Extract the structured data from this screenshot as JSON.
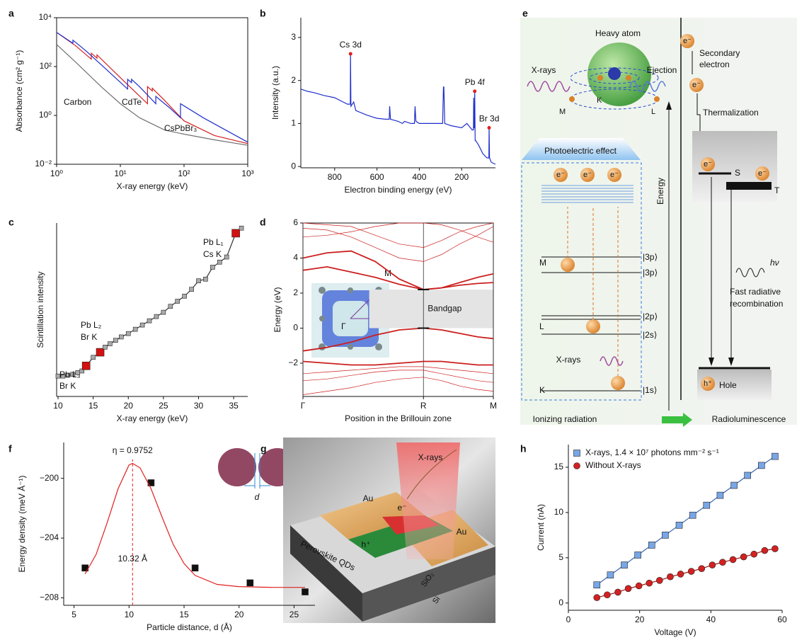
{
  "chart_data": [
    {
      "type": "line",
      "panel": "a",
      "xlabel": "X-ray energy (keV)",
      "ylabel": "Absorbance (cm² g⁻¹)",
      "xlog": true,
      "ylog": true,
      "frame": true,
      "xlim": [
        1,
        1000
      ],
      "ylim": [
        0.01,
        10000
      ],
      "xticks": [
        {
          "value": 1,
          "label": "10⁰"
        },
        {
          "value": 10,
          "label": "10¹"
        },
        {
          "value": 100,
          "label": "10²"
        },
        {
          "value": 1000,
          "label": "10³"
        }
      ],
      "yticks": [
        {
          "value": 0.01,
          "label": "10⁻²"
        },
        {
          "value": 1,
          "label": "10⁰"
        },
        {
          "value": 100,
          "label": "10²"
        },
        {
          "value": 10000,
          "label": "10⁴"
        }
      ],
      "series": [
        {
          "name": "Carbon",
          "color": "#707070",
          "x": [
            1,
            2,
            5,
            10,
            20,
            50,
            100,
            300,
            1000
          ],
          "values": [
            800,
            150,
            15,
            3,
            0.8,
            0.25,
            0.17,
            0.1,
            0.06
          ]
        },
        {
          "name": "CdTe",
          "color": "#d42020",
          "x": [
            1,
            2,
            3.5,
            3.5,
            4.3,
            4.3,
            10,
            26.7,
            26.7,
            31.8,
            31.8,
            50,
            100,
            300,
            1000
          ],
          "values": [
            2500,
            700,
            200,
            350,
            220,
            300,
            35,
            3,
            15,
            10,
            13,
            4,
            0.6,
            0.15,
            0.07
          ]
        },
        {
          "name": "CsPbBr₃",
          "color": "#1f2fcc",
          "x": [
            1,
            1.8,
            1.8,
            2.5,
            3,
            5,
            13,
            13,
            15,
            15,
            20,
            36,
            36,
            60,
            88,
            88,
            200,
            1000
          ],
          "values": [
            2500,
            900,
            1200,
            600,
            400,
            120,
            12,
            30,
            22,
            30,
            15,
            3,
            6,
            2,
            0.8,
            3,
            0.8,
            0.08
          ]
        }
      ]
    },
    {
      "type": "line",
      "panel": "b",
      "xlabel": "Electron binding energy (eV)",
      "ylabel": "Intensity (a.u.)",
      "xlim": [
        960,
        40
      ],
      "ylim": [
        -0.03,
        3.46
      ],
      "xticks": [
        800,
        600,
        400,
        200
      ],
      "yticks": [
        0,
        1,
        2,
        3
      ],
      "series": [
        {
          "color": "#1f2fcc",
          "x": [
            960,
            930,
            900,
            850,
            800,
            760,
            740,
            726,
            725,
            723,
            710,
            700,
            650,
            620,
            600,
            560,
            542,
            540,
            536,
            500,
            480,
            470,
            440,
            423,
            420,
            416,
            400,
            380,
            290,
            286,
            284,
            280,
            250,
            200,
            175,
            150,
            144,
            143,
            141,
            139,
            138,
            136,
            133,
            120,
            100,
            80,
            71,
            70,
            68,
            60,
            40
          ],
          "values": [
            1.8,
            1.75,
            1.72,
            1.65,
            1.6,
            1.5,
            1.45,
            1.45,
            2.62,
            1.4,
            1.5,
            1.3,
            1.2,
            1.15,
            1.12,
            1.1,
            1.1,
            1.4,
            1.1,
            1.05,
            1.0,
            1.05,
            1.0,
            1.0,
            1.4,
            1.05,
            1.0,
            1.0,
            1.0,
            1.85,
            1.85,
            1.0,
            0.95,
            0.9,
            1.0,
            0.85,
            0.85,
            1.6,
            0.9,
            0.9,
            1.75,
            0.6,
            0.6,
            0.5,
            0.3,
            0.2,
            0.2,
            0.9,
            0.2,
            0.1,
            0.05
          ]
        }
      ],
      "peaks": [
        {
          "label": "Cs 3d",
          "x": 725,
          "y": 2.62
        },
        {
          "label": "Pb 4f",
          "x": 138,
          "y": 1.75
        },
        {
          "label": "Br 3d",
          "x": 70,
          "y": 0.9
        }
      ]
    },
    {
      "type": "line",
      "panel": "c",
      "xlabel": "X-ray energy (keV)",
      "ylabel": "Scintillation intensity",
      "xlim": [
        9.8,
        37
      ],
      "ylim": [
        0,
        10.2
      ],
      "xticks": [
        10,
        15,
        20,
        25,
        30,
        35
      ],
      "series": [
        {
          "color": "#333333",
          "marker": "square",
          "x": [
            10,
            10.7,
            11.4,
            12.1,
            12.8,
            13.4,
            14,
            15,
            16,
            16.7,
            17.4,
            18.2,
            19,
            20,
            21,
            22,
            23,
            24,
            25,
            26,
            27,
            28,
            29,
            30,
            31,
            32,
            33,
            34,
            35.3,
            36.1
          ],
          "values": [
            1.2,
            1.2,
            1.25,
            1.3,
            1.4,
            1.5,
            1.8,
            2.3,
            2.6,
            2.9,
            3.1,
            3.3,
            3.5,
            3.7,
            3.95,
            4.2,
            4.45,
            4.7,
            4.95,
            5.3,
            5.6,
            5.9,
            6.3,
            6.8,
            6.9,
            7.6,
            7.9,
            8.2,
            9.6,
            9.9
          ],
          "colors": [
            "#aaaaaa",
            "#aaaaaa",
            "#aaaaaa",
            "#aaaaaa",
            "#aaaaaa",
            "#aaaaaa",
            "#d41010",
            "#aaaaaa",
            "#d41010",
            "#aaaaaa",
            "#aaaaaa",
            "#aaaaaa",
            "#aaaaaa",
            "#aaaaaa",
            "#aaaaaa",
            "#aaaaaa",
            "#aaaaaa",
            "#aaaaaa",
            "#aaaaaa",
            "#aaaaaa",
            "#aaaaaa",
            "#aaaaaa",
            "#aaaaaa",
            "#aaaaaa",
            "#aaaaaa",
            "#aaaaaa",
            "#aaaaaa",
            "#aaaaaa",
            "#d41010",
            "#aaaaaa"
          ]
        }
      ],
      "labels": [
        "Pb L₁",
        "Cs K",
        "Pb L₂",
        "Br K",
        "Pb L₃",
        "Br K"
      ]
    },
    {
      "type": "line",
      "panel": "d",
      "xlabel": "Position in the Brillouin zone",
      "ylabel": "Energy (eV)",
      "frame": true,
      "grid": true,
      "xlim": [
        0,
        1.58
      ],
      "ylim": [
        -3.9,
        6
      ],
      "xticks": [
        {
          "value": 0,
          "label": "Γ"
        },
        {
          "value": 1,
          "label": "R"
        },
        {
          "value": 1.58,
          "label": "M"
        }
      ],
      "yticks": [
        {
          "value": -2,
          "label": "−2"
        },
        0,
        2,
        4,
        6
      ],
      "x": [
        0,
        0.2,
        0.4,
        0.6,
        0.8,
        1,
        1.15,
        1.3,
        1.45,
        1.58
      ],
      "series": [
        {
          "color": "#cc1f1f",
          "width": 1.8,
          "values": [
            4.0,
            4.3,
            4.4,
            3.8,
            2.8,
            2.2,
            2.3,
            2.45,
            2.55,
            2.6
          ]
        },
        {
          "color": "#cc1f1f",
          "width": 1.8,
          "values": [
            3.3,
            3.5,
            3.2,
            2.9,
            2.5,
            2.2,
            2.3,
            2.6,
            2.9,
            3.1
          ]
        },
        {
          "color": "#cc1f1f",
          "width": 1.8,
          "values": [
            -1.3,
            -1.1,
            -0.8,
            -0.4,
            -0.1,
            0,
            -0.1,
            -0.3,
            -0.5,
            -0.6
          ]
        },
        {
          "color": "#cc1f1f",
          "width": 1.8,
          "values": [
            -1.9,
            -2.0,
            -2.1,
            -2.1,
            -2.0,
            -1.9,
            -1.9,
            -2.0,
            -2.1,
            -2.1
          ]
        },
        {
          "color": "#cc1f1f",
          "width": 0.7,
          "values": [
            5.7,
            5.6,
            5.2,
            4.6,
            4.0,
            3.8,
            4.2,
            4.8,
            5.3,
            5.8
          ]
        },
        {
          "color": "#cc1f1f",
          "width": 0.7,
          "values": [
            6.0,
            5.9,
            5.8,
            5.3,
            4.8,
            4.6,
            5.0,
            5.5,
            5.8,
            6.0
          ]
        },
        {
          "color": "#cc1f1f",
          "width": 0.7,
          "values": [
            5.2,
            5.3,
            5.5,
            5.8,
            6.0,
            6.0,
            5.9,
            5.6,
            5.2,
            4.9
          ]
        },
        {
          "color": "#cc1f1f",
          "width": 0.7,
          "values": [
            -2.6,
            -2.5,
            -2.4,
            -2.3,
            -2.2,
            -2.2,
            -2.3,
            -2.4,
            -2.5,
            -2.6
          ]
        },
        {
          "color": "#cc1f1f",
          "width": 0.7,
          "values": [
            -3.0,
            -2.9,
            -2.7,
            -2.5,
            -2.4,
            -2.4,
            -2.6,
            -2.8,
            -3.0,
            -3.1
          ]
        },
        {
          "color": "#cc1f1f",
          "width": 0.7,
          "values": [
            -3.8,
            -3.6,
            -3.4,
            -3.1,
            -2.9,
            -2.8,
            -3.0,
            -3.3,
            -3.5,
            -3.6
          ]
        }
      ],
      "bandgap": {
        "label": "Bandgap",
        "values": [
          0,
          2.2
        ]
      },
      "inset_labels": [
        "M",
        "R",
        "X",
        "Γ"
      ]
    },
    {
      "type": "scatter",
      "panel": "f",
      "xlabel": "Particle distance, d (Å)",
      "ylabel": "Energy density (meV Å⁻¹)",
      "xlim": [
        4.06,
        26.9
      ],
      "ylim": [
        -208.5,
        -197.6
      ],
      "xticks": [
        5,
        10,
        15,
        20,
        25
      ],
      "yticks": [
        {
          "value": -208,
          "label": "−208"
        },
        {
          "value": -204,
          "label": "−204"
        },
        {
          "value": -200,
          "label": "−200"
        }
      ],
      "series": [
        {
          "color": "#111111",
          "marker": "square",
          "line": false,
          "x": [
            6,
            12,
            16,
            21,
            26
          ],
          "values": [
            -206,
            -200.3,
            -206,
            -207,
            -207.6
          ]
        },
        {
          "color": "#e02020",
          "x": [
            6,
            7,
            8,
            9,
            10,
            10.32,
            11,
            12,
            13,
            14,
            15,
            16,
            18,
            20,
            23,
            26
          ],
          "values": [
            -206.4,
            -205.1,
            -203.0,
            -200.7,
            -199.1,
            -199.0,
            -199.3,
            -200.7,
            -202.6,
            -204.4,
            -205.7,
            -206.5,
            -207.1,
            -207.25,
            -207.3,
            -207.3
          ]
        }
      ],
      "peak": {
        "x": 10.32,
        "label": "10.32 Å",
        "eta": "η = 0.9752"
      },
      "inset_label": "d"
    },
    {
      "type": "line",
      "panel": "h",
      "xlabel": "Voltage (V)",
      "ylabel": "Current (nA)",
      "xlim": [
        0,
        60
      ],
      "ylim": [
        -0.8,
        17.5
      ],
      "xticks": [
        0,
        20,
        40,
        60
      ],
      "yticks": [
        0,
        5,
        10,
        15
      ],
      "legend": "upper left",
      "series": [
        {
          "name": "X-rays, 1.4 × 10⁷ photons mm⁻² s⁻¹",
          "color": "#3b66b0",
          "marker": "square",
          "marker_color": "#78a6e6",
          "x": [
            8,
            11.8,
            15.7,
            19.5,
            23.4,
            27.2,
            31.1,
            34.9,
            38.8,
            42.6,
            46.5,
            50.3,
            54.2,
            58
          ],
          "values": [
            2.0,
            3.1,
            4.2,
            5.3,
            6.4,
            7.5,
            8.6,
            9.7,
            10.8,
            11.9,
            13.0,
            14.1,
            15.2,
            16.2
          ]
        },
        {
          "name": "Without X-rays",
          "color": "#a01010",
          "marker": "circle",
          "marker_color": "#d42020",
          "x": [
            8,
            10.9,
            13.9,
            16.8,
            19.8,
            22.7,
            25.6,
            28.6,
            31.5,
            34.5,
            37.4,
            40.4,
            43.3,
            46.2,
            49.2,
            52.1,
            55.1,
            58
          ],
          "values": [
            0.6,
            0.9,
            1.2,
            1.6,
            1.9,
            2.2,
            2.5,
            2.9,
            3.2,
            3.5,
            3.8,
            4.2,
            4.5,
            4.8,
            5.1,
            5.4,
            5.8,
            6.0
          ]
        }
      ]
    }
  ],
  "panel_e": {
    "label": "e",
    "texts": [
      "Heavy atom",
      "X-rays",
      "Ejection",
      "K",
      "M",
      "L",
      "Photoelectric effect",
      "e⁻",
      "e⁻",
      "e⁻",
      "M",
      "|3p⟩",
      "|3p⟩",
      "L",
      "|2p⟩",
      "|2s⟩",
      "X-rays",
      "K",
      "|1s⟩",
      "Ionizing radiation",
      "Radioluminescence",
      "Energy",
      "e⁻",
      "Secondary",
      "electron",
      "e⁻",
      "Thermalization",
      "e⁻",
      "S",
      "e⁻",
      "T",
      "hν",
      "Fast radiative",
      "recombination",
      "h⁺",
      "Hole"
    ]
  },
  "panel_g": {
    "label": "g",
    "texts": [
      "X-rays",
      "Au",
      "e⁻",
      "Au",
      "h⁺",
      "Perovskite QDs",
      "SiO₂",
      "Si"
    ]
  }
}
